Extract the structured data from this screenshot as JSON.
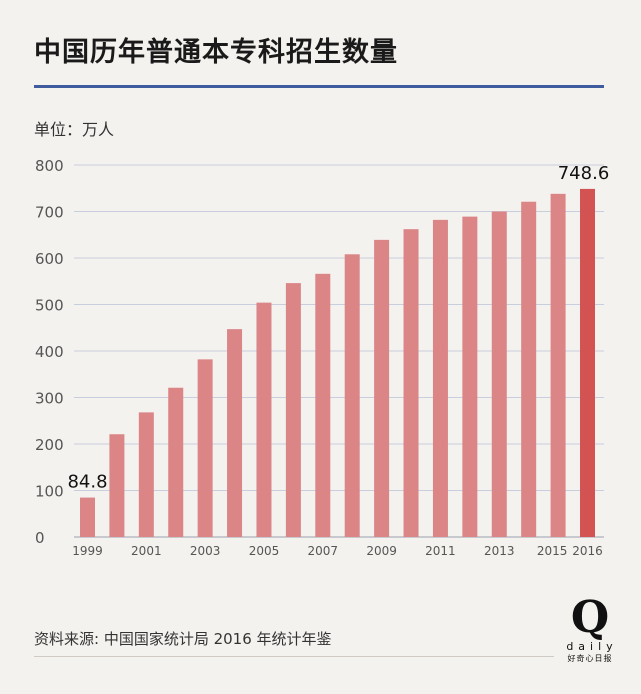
{
  "header": {
    "title": "中国历年普通本专科招生数量",
    "unit": "单位：万人"
  },
  "footer": {
    "source": "资料来源: 中国国家统计局 2016 年统计年鉴",
    "logo_letter": "Q",
    "logo_word": "daily",
    "logo_cn": "好奇心日报"
  },
  "colors": {
    "bar": "#db8586",
    "bar_highlight": "#d35252",
    "grid": "#c9cede",
    "axis": "#9aa0b0",
    "tick_label": "#555555",
    "title_rule": "#3f5d9e"
  },
  "chart_data": {
    "type": "bar",
    "title": "中国历年普通本专科招生数量",
    "ylabel": "单位：万人",
    "xlabel": "",
    "ylim": [
      0,
      800
    ],
    "yticks": [
      0,
      100,
      200,
      300,
      400,
      500,
      600,
      700,
      800
    ],
    "grid": true,
    "categories": [
      "1999",
      "2000",
      "2001",
      "2002",
      "2003",
      "2004",
      "2005",
      "2006",
      "2007",
      "2008",
      "2009",
      "2010",
      "2011",
      "2012",
      "2013",
      "2014",
      "2015",
      "2016"
    ],
    "visible_xtick_labels": [
      "1999",
      "2001",
      "2003",
      "2005",
      "2007",
      "2009",
      "2011",
      "2013",
      "2015",
      "2016"
    ],
    "values": [
      84.8,
      221,
      268,
      321,
      382,
      447,
      504,
      546,
      566,
      608,
      639,
      662,
      682,
      689,
      700,
      721,
      738,
      748.6
    ],
    "highlight_index": 17,
    "data_labels": [
      {
        "index": 0,
        "text": "84.8"
      },
      {
        "index": 17,
        "text": "748.6"
      }
    ]
  }
}
